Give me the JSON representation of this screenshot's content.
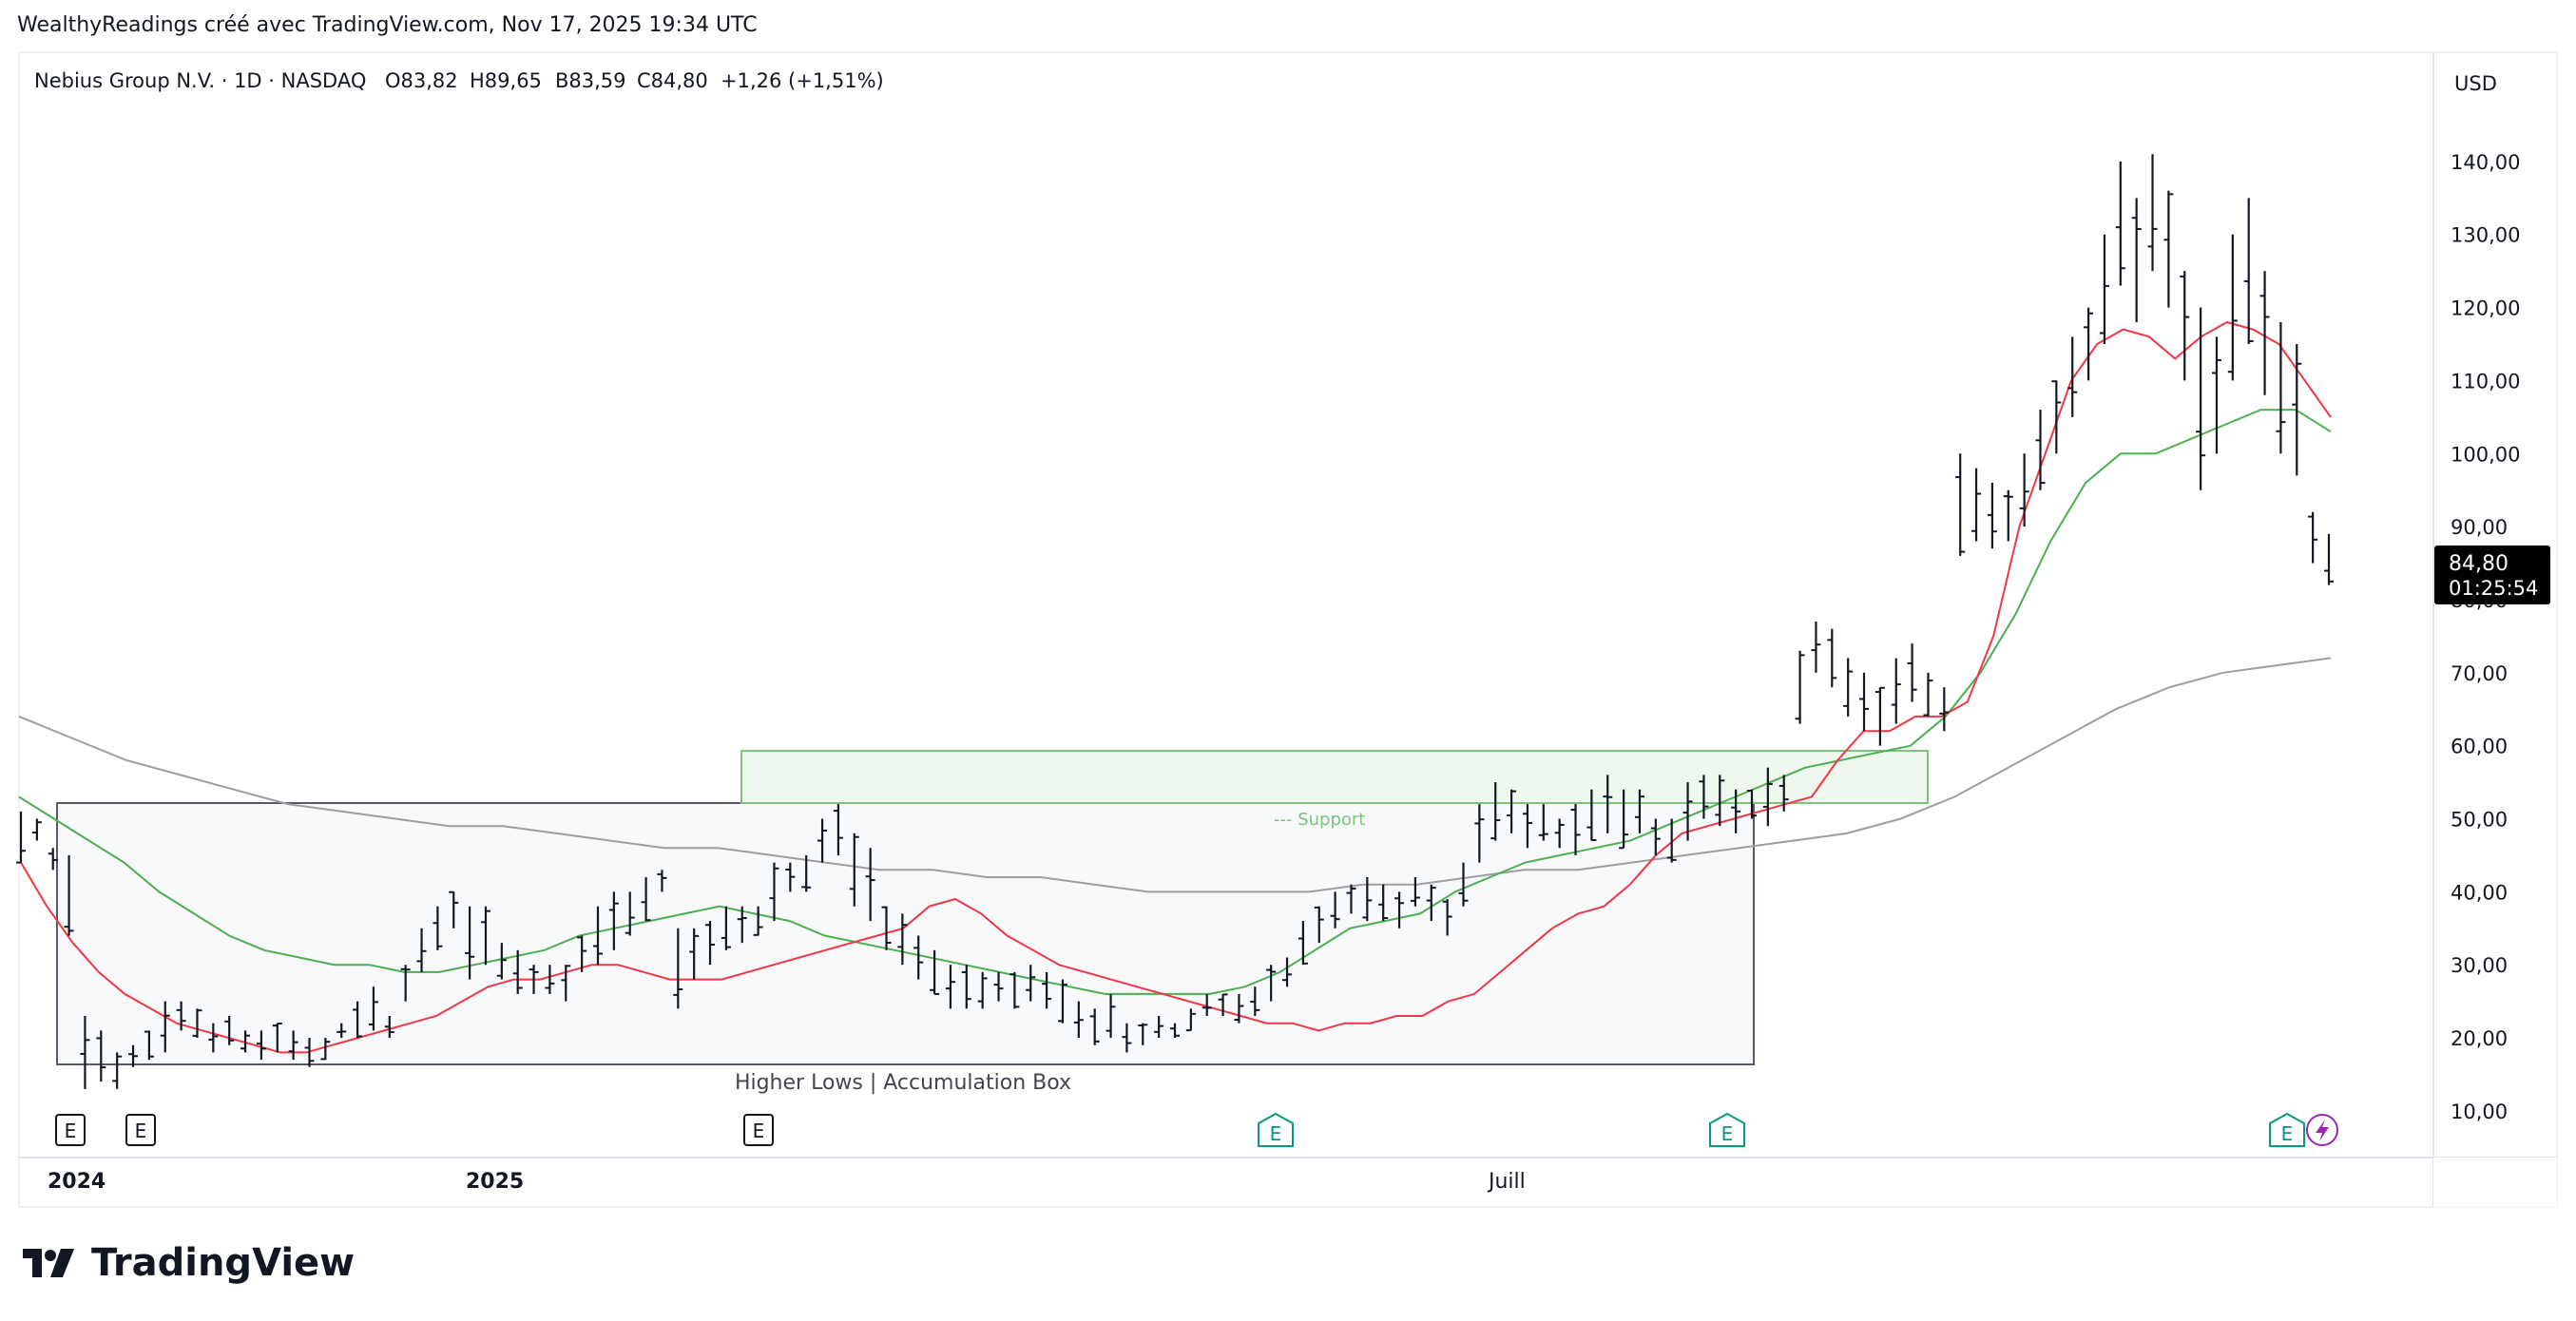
{
  "attribution": "WealthyReadings créé avec TradingView.com, Nov 17, 2025 19:34 UTC",
  "legend": {
    "symbol": "Nebius Group N.V. · 1D · NASDAQ",
    "open": "O83,82",
    "high": "H89,65",
    "low": "B83,59",
    "close": "C84,80",
    "change": "+1,26 (+1,51%)"
  },
  "currency": "USD",
  "price_badge": {
    "price": "84,80",
    "countdown": "01:25:54",
    "color": "#000000"
  },
  "brand": {
    "name": "TradingView"
  },
  "annotations": {
    "accumulation_box": "Higher Lows | Accumulation Box",
    "support": "--- Support"
  },
  "earnings_marker": "E",
  "colors": {
    "ema_fast": "#f23645",
    "ema_medium": "#4caf50",
    "sma_long": "#9e9e9e",
    "bars": "#131722",
    "zone_fill": "#e8f5e9",
    "zone_border": "#66bb6a",
    "box_border": "#131722",
    "earnings_past": "#131722",
    "earnings_upcoming": "#089981",
    "lightning": "#9c27b0"
  },
  "chart_data": {
    "type": "ohlc",
    "y_range": [
      4,
      153
    ],
    "y_ticks": [
      "140,00",
      "130,00",
      "120,00",
      "110,00",
      "100,00",
      "90,00",
      "80,00",
      "70,00",
      "60,00",
      "50,00",
      "40,00",
      "30,00",
      "20,00",
      "10,00"
    ],
    "x_labels": [
      "2024",
      "2025",
      "Juill"
    ],
    "bar_ranges": [
      [
        44,
        51
      ],
      [
        47,
        50
      ],
      [
        43,
        46
      ],
      [
        34,
        45
      ],
      [
        13,
        23
      ],
      [
        14,
        21
      ],
      [
        13,
        18
      ],
      [
        16,
        19
      ],
      [
        17,
        21
      ],
      [
        18,
        25
      ],
      [
        21,
        25
      ],
      [
        20,
        24
      ],
      [
        18,
        22
      ],
      [
        19,
        23
      ],
      [
        18,
        21
      ],
      [
        17,
        21
      ],
      [
        18,
        22
      ],
      [
        17,
        21
      ],
      [
        16,
        20
      ],
      [
        17,
        20
      ],
      [
        20,
        22
      ],
      [
        20,
        25
      ],
      [
        21,
        27
      ],
      [
        20,
        23
      ],
      [
        25,
        30
      ],
      [
        29,
        35
      ],
      [
        32,
        38
      ],
      [
        35,
        40
      ],
      [
        28,
        38
      ],
      [
        30,
        38
      ],
      [
        28,
        33
      ],
      [
        26,
        32
      ],
      [
        26,
        30
      ],
      [
        26,
        30
      ],
      [
        25,
        30
      ],
      [
        29,
        34
      ],
      [
        30,
        38
      ],
      [
        32,
        40
      ],
      [
        34,
        40
      ],
      [
        36,
        42
      ],
      [
        40,
        43
      ],
      [
        24,
        35
      ],
      [
        28,
        35
      ],
      [
        30,
        36
      ],
      [
        32,
        38
      ],
      [
        33,
        38
      ],
      [
        34,
        38
      ],
      [
        36,
        44
      ],
      [
        40,
        44
      ],
      [
        40,
        45
      ],
      [
        44,
        50
      ],
      [
        45,
        52
      ],
      [
        38,
        48
      ],
      [
        36,
        46
      ],
      [
        32,
        38
      ],
      [
        30,
        37
      ],
      [
        28,
        34
      ],
      [
        26,
        32
      ],
      [
        24,
        30
      ],
      [
        24,
        30
      ],
      [
        24,
        29
      ],
      [
        25,
        29
      ],
      [
        24,
        29
      ],
      [
        25,
        30
      ],
      [
        24,
        29
      ],
      [
        22,
        28
      ],
      [
        20,
        25
      ],
      [
        19,
        24
      ],
      [
        20,
        26
      ],
      [
        18,
        22
      ],
      [
        19,
        22
      ],
      [
        20,
        23
      ],
      [
        20,
        22
      ],
      [
        21,
        24
      ],
      [
        23,
        26
      ],
      [
        23,
        26
      ],
      [
        22,
        26
      ],
      [
        23,
        27
      ],
      [
        25,
        30
      ],
      [
        27,
        31
      ],
      [
        30,
        36
      ],
      [
        33,
        38
      ],
      [
        35,
        40
      ],
      [
        37,
        41
      ],
      [
        36,
        42
      ],
      [
        36,
        41
      ],
      [
        35,
        40
      ],
      [
        38,
        42
      ],
      [
        36,
        41
      ],
      [
        34,
        39
      ],
      [
        38,
        44
      ],
      [
        44,
        52
      ],
      [
        47,
        55
      ],
      [
        48,
        54
      ],
      [
        46,
        52
      ],
      [
        47,
        52
      ],
      [
        46,
        50
      ],
      [
        45,
        52
      ],
      [
        47,
        54
      ],
      [
        48,
        56
      ],
      [
        46,
        54
      ],
      [
        48,
        54
      ],
      [
        45,
        50
      ],
      [
        44,
        50
      ],
      [
        47,
        55
      ],
      [
        50,
        56
      ],
      [
        49,
        56
      ],
      [
        48,
        54
      ],
      [
        50,
        54
      ],
      [
        49,
        57
      ],
      [
        51,
        56
      ],
      [
        63,
        73
      ],
      [
        70,
        77
      ],
      [
        68,
        76
      ],
      [
        64,
        72
      ],
      [
        62,
        70
      ],
      [
        60,
        68
      ],
      [
        63,
        72
      ],
      [
        66,
        74
      ],
      [
        64,
        70
      ],
      [
        62,
        68
      ],
      [
        86,
        100
      ],
      [
        88,
        98
      ],
      [
        87,
        96
      ],
      [
        88,
        95
      ],
      [
        90,
        100
      ],
      [
        95,
        106
      ],
      [
        100,
        110
      ],
      [
        105,
        116
      ],
      [
        110,
        120
      ],
      [
        115,
        130
      ],
      [
        123,
        140
      ],
      [
        118,
        135
      ],
      [
        125,
        141
      ],
      [
        120,
        136
      ],
      [
        110,
        125
      ],
      [
        95,
        120
      ],
      [
        100,
        116
      ],
      [
        110,
        130
      ],
      [
        115,
        135
      ],
      [
        108,
        125
      ],
      [
        100,
        118
      ],
      [
        97,
        115
      ],
      [
        85,
        92
      ],
      [
        82,
        89
      ]
    ],
    "series": [
      {
        "name": "",
        "type": "ema",
        "values": [
          44,
          38,
          33,
          29,
          26,
          24,
          22,
          21,
          20,
          19,
          18,
          18,
          19,
          20,
          21,
          22,
          23,
          25,
          27,
          28,
          28,
          29,
          30,
          30,
          29,
          28,
          28,
          28,
          29,
          30,
          31,
          32,
          33,
          34,
          35,
          38,
          39,
          37,
          34,
          32,
          30,
          29,
          28,
          27,
          26,
          25,
          24,
          23,
          22,
          22,
          21,
          22,
          22,
          23,
          23,
          25,
          26,
          29,
          32,
          35,
          37,
          38,
          41,
          45,
          48,
          49,
          50,
          51,
          52,
          53,
          58,
          62,
          62,
          64,
          64,
          66,
          75,
          90,
          100,
          110,
          115,
          117,
          116,
          113,
          116,
          118,
          117,
          115,
          110,
          105
        ]
      },
      {
        "name": "",
        "type": "ema",
        "values": [
          53,
          50,
          47,
          44,
          40,
          37,
          34,
          32,
          31,
          30,
          30,
          29,
          29,
          30,
          31,
          32,
          34,
          35,
          36,
          37,
          38,
          37,
          36,
          34,
          33,
          32,
          31,
          30,
          29,
          28,
          27,
          26,
          26,
          26,
          26,
          27,
          29,
          32,
          35,
          36,
          37,
          40,
          42,
          44,
          45,
          46,
          47,
          49,
          51,
          53,
          55,
          57,
          58,
          59,
          60,
          64,
          70,
          78,
          88,
          96,
          100,
          100,
          102,
          104,
          106,
          106,
          103
        ]
      },
      {
        "name": "",
        "type": "sma",
        "values": [
          64,
          61,
          58,
          56,
          54,
          52,
          51,
          50,
          49,
          49,
          48,
          47,
          46,
          46,
          45,
          44,
          43,
          43,
          42,
          42,
          41,
          40,
          40,
          40,
          40,
          41,
          41,
          42,
          43,
          43,
          44,
          45,
          46,
          47,
          48,
          50,
          53,
          57,
          61,
          65,
          68,
          70,
          71,
          72
        ]
      }
    ]
  }
}
